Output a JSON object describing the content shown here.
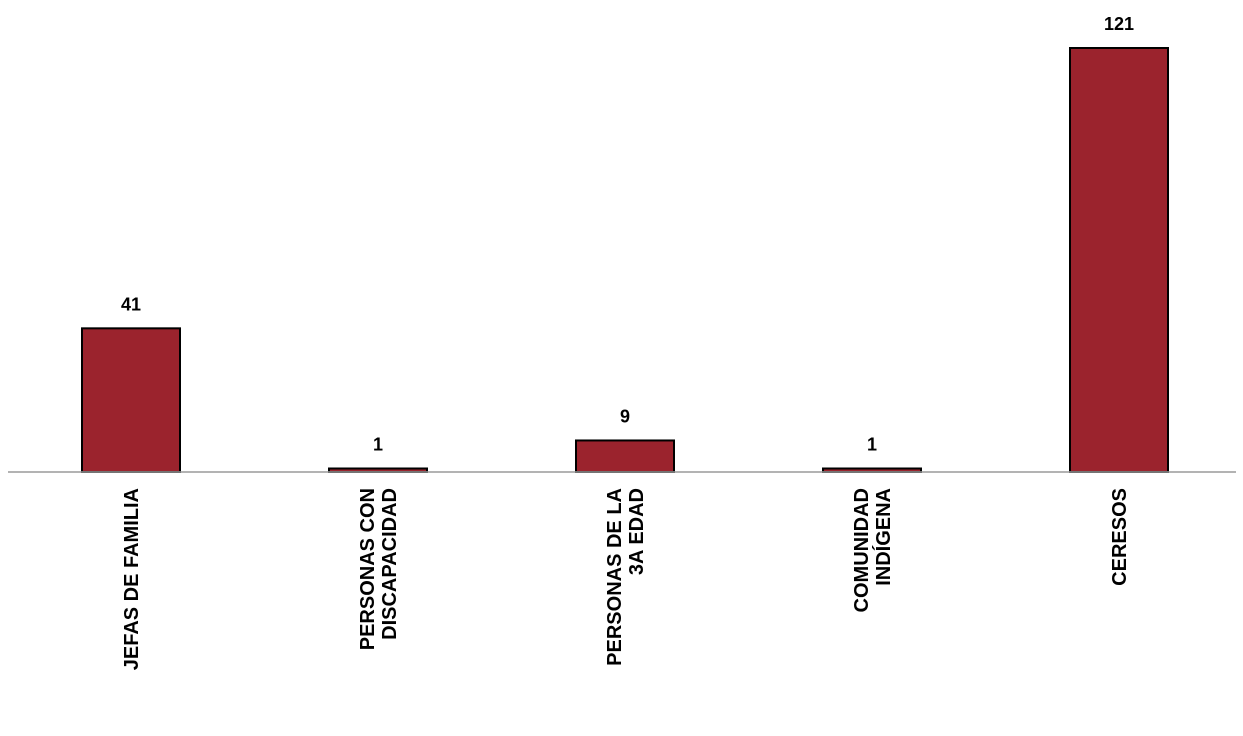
{
  "chart_data": {
    "type": "bar",
    "categories": [
      [
        "JEFAS DE FAMILIA"
      ],
      [
        "PERSONAS CON",
        "DISCAPACIDAD"
      ],
      [
        "PERSONAS DE LA",
        "3A EDAD"
      ],
      [
        "COMUNIDAD",
        "INDÍGENA"
      ],
      [
        "CERESOS"
      ]
    ],
    "values": [
      41,
      1,
      9,
      1,
      121
    ],
    "data_labels": [
      "41",
      "1",
      "9",
      "1",
      "121"
    ],
    "ylim": [
      0,
      121
    ],
    "grid": false,
    "legend": "none",
    "bar_color": "#9b232d",
    "bar_edge_color": "#000000",
    "axis_color": "#9a9a9a"
  }
}
